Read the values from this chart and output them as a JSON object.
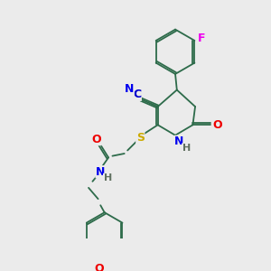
{
  "background_color": "#ebebeb",
  "bond_color": "#2d6b4a",
  "atom_colors": {
    "N": "#0000ee",
    "O": "#ee0000",
    "S": "#ccaa00",
    "F": "#ee00ee",
    "C_label": "#0000cc",
    "H": "#607060"
  },
  "figsize": [
    3.0,
    3.0
  ],
  "dpi": 100
}
